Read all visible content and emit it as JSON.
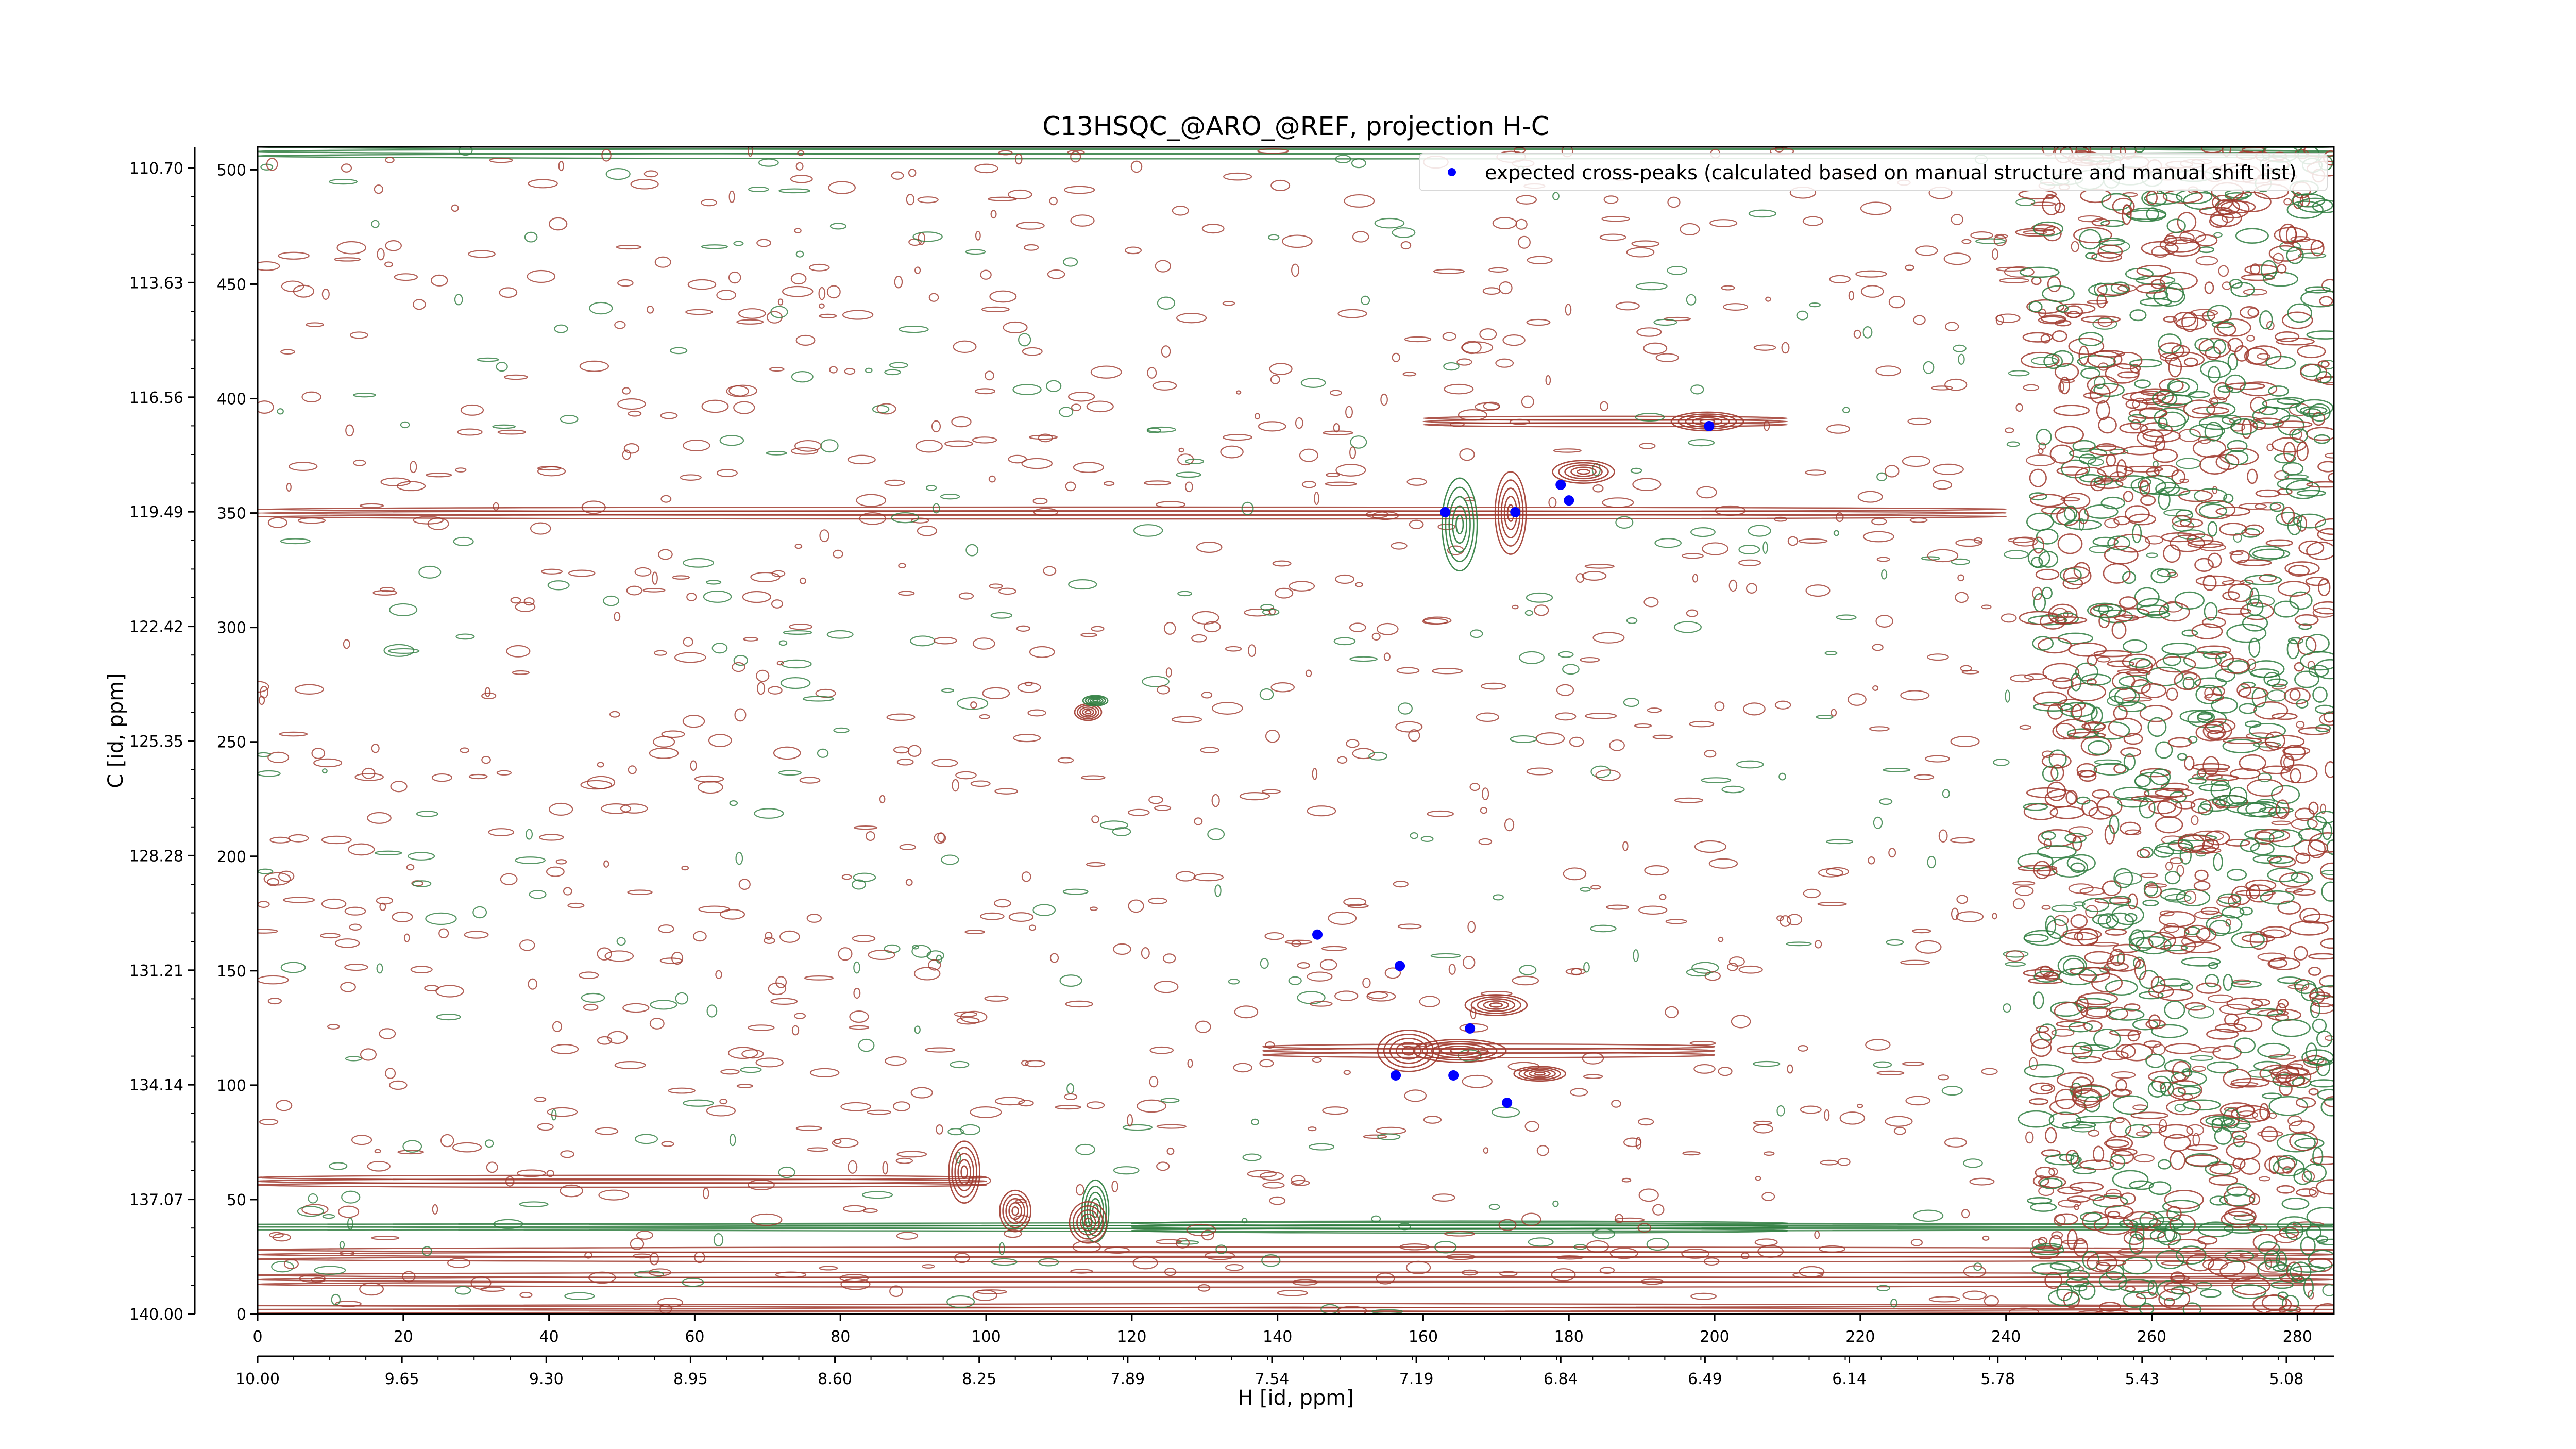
{
  "chart_data": {
    "type": "scatter",
    "title": "C13HSQC_@ARO_@REF, projection H-C",
    "xlabel": "H [id, ppm]",
    "ylabel": "C [id, ppm]",
    "x_index_range": [
      0,
      285
    ],
    "y_index_range": [
      0,
      510
    ],
    "x_index_ticks": [
      "0",
      "20",
      "40",
      "60",
      "80",
      "100",
      "120",
      "140",
      "160",
      "180",
      "200",
      "220",
      "240",
      "260",
      "280"
    ],
    "x_ppm_ticks": [
      "10.00",
      "9.65",
      "9.30",
      "8.95",
      "8.60",
      "8.25",
      "7.89",
      "7.54",
      "7.19",
      "6.84",
      "6.49",
      "6.14",
      "5.78",
      "5.43",
      "5.08"
    ],
    "y_index_ticks": [
      "0",
      "50",
      "100",
      "150",
      "200",
      "250",
      "300",
      "350",
      "400",
      "450",
      "500"
    ],
    "y_ppm_ticks": [
      "140.00",
      "137.07",
      "134.14",
      "131.21",
      "128.28",
      "125.35",
      "122.42",
      "119.49",
      "116.56",
      "113.63",
      "110.70"
    ],
    "x_ppm_range": [
      10.0,
      4.965
    ],
    "y_ppm_range": [
      140.0,
      110.16
    ],
    "legend": {
      "position": "top-right",
      "entries": [
        "expected cross-peaks (calculated based on manual structure and manual shift list)"
      ]
    },
    "colors": {
      "series": "#0000ff",
      "positive_contours": "#a03a2e",
      "negative_contours": "#2e7d3e"
    },
    "series": [
      {
        "name": "expected cross-peaks (calculated based on manual structure and manual shift list)",
        "points": [
          {
            "x": 6.48,
            "y": 117.3
          },
          {
            "x": 6.84,
            "y": 118.8
          },
          {
            "x": 6.82,
            "y": 119.2
          },
          {
            "x": 6.95,
            "y": 119.5
          },
          {
            "x": 7.12,
            "y": 119.5
          },
          {
            "x": 7.43,
            "y": 130.3
          },
          {
            "x": 7.23,
            "y": 131.1
          },
          {
            "x": 7.06,
            "y": 132.7
          },
          {
            "x": 7.24,
            "y": 133.9
          },
          {
            "x": 7.1,
            "y": 133.9
          },
          {
            "x": 6.97,
            "y": 134.6
          }
        ]
      }
    ]
  }
}
